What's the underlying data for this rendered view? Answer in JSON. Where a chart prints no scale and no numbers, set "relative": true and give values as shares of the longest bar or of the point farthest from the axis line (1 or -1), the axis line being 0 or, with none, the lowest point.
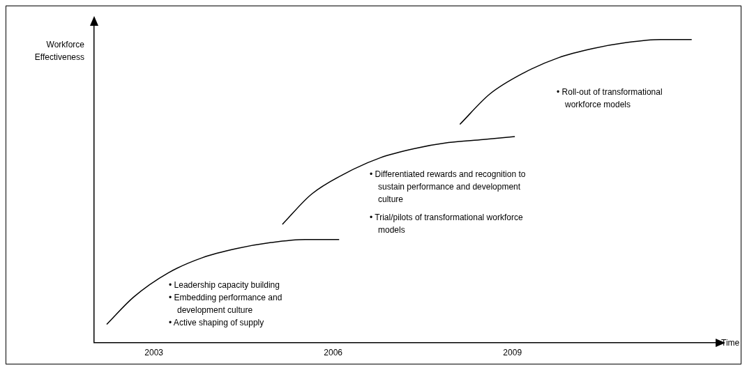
{
  "chart_data": {
    "type": "line",
    "relative": true,
    "xlabel": "Time",
    "ylabel": "Workforce Effectiveness",
    "xlim": [
      2002,
      2012.4
    ],
    "xticks": [
      2003,
      2006,
      2009
    ],
    "grid": false,
    "legend": false,
    "marker": "none",
    "line_style": "solid",
    "series": [
      {
        "color": "#000000",
        "x": [
          2002.21,
          2002.66,
          2003.24,
          2003.81,
          2004.38,
          2004.96,
          2005.53,
          2006.1
        ],
        "values": [
          0.06,
          0.15,
          0.23,
          0.28,
          0.31,
          0.33,
          0.34,
          0.34
        ]
      },
      {
        "color": "#000000",
        "x": [
          2005.15,
          2005.64,
          2006.22,
          2006.79,
          2007.36,
          2007.93,
          2008.51,
          2009.04
        ],
        "values": [
          0.39,
          0.49,
          0.56,
          0.61,
          0.64,
          0.66,
          0.67,
          0.68
        ]
      },
      {
        "color": "#000000",
        "x": [
          2008.12,
          2008.62,
          2009.19,
          2009.77,
          2010.34,
          2010.91,
          2011.48,
          2012.0
        ],
        "values": [
          0.72,
          0.82,
          0.89,
          0.94,
          0.97,
          0.99,
          1.0,
          1.0
        ]
      }
    ],
    "annotations": [
      "• Leadership capacity building",
      "• Embedding performance and development culture",
      "• Active shaping of supply",
      "• Differentiated rewards and recognition to sustain performance and development culture",
      "• Trial/pilots of transformational workforce models",
      "• Roll-out of transformational workforce models"
    ]
  }
}
